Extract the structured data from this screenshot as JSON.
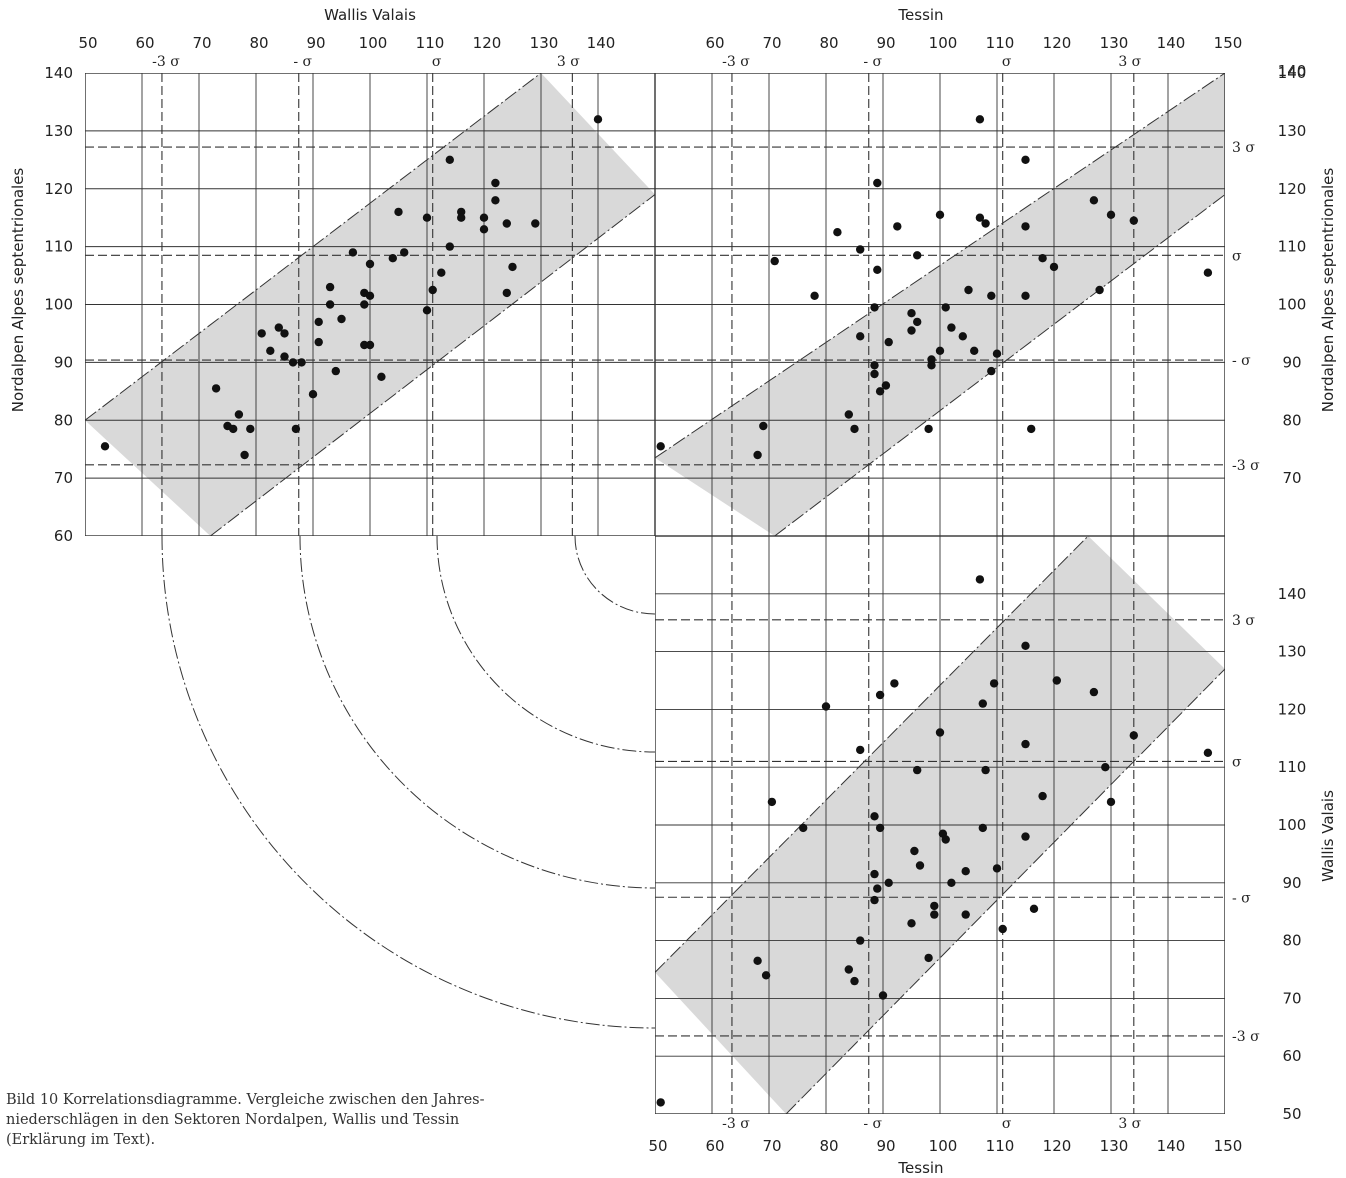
{
  "caption": {
    "lines": [
      "Bild 10   Korrelationsdiagramme. Vergleiche zwischen den Jahres-",
      "niederschlägen in den Sektoren Nordalpen, Wallis und Tessin",
      "(Erklärung im Text)."
    ]
  },
  "chart_data": [
    {
      "type": "scatter",
      "id": "wallis-vs-nordalpen",
      "title": "",
      "xlabel": "Wallis   Valais",
      "ylabel": "Nordalpen   Alpes septentrionales",
      "xlim": [
        50,
        150
      ],
      "ylim": [
        60,
        140
      ],
      "xticks": [
        50,
        60,
        70,
        80,
        90,
        100,
        110,
        120,
        130,
        140
      ],
      "yticks": [
        60,
        70,
        80,
        90,
        100,
        110,
        120,
        130,
        140
      ],
      "sigma_x": {
        "labels": [
          "-3 σ",
          "- σ",
          "σ",
          "3 σ"
        ],
        "values": [
          63.5,
          87.5,
          111,
          135.5
        ]
      },
      "sigma_y": {
        "labels": [
          "-3 σ",
          "- σ",
          "σ",
          "3 σ"
        ],
        "values": [
          72.3,
          90.4,
          108.5,
          127.2
        ]
      },
      "band": {
        "lower": [
          [
            72,
            60
          ],
          [
            150,
            119
          ]
        ],
        "upper": [
          [
            50,
            80
          ],
          [
            130,
            140
          ]
        ]
      },
      "points": [
        [
          53.5,
          75.5
        ],
        [
          73,
          85.5
        ],
        [
          75,
          79
        ],
        [
          76,
          78.5
        ],
        [
          77,
          81
        ],
        [
          78,
          74
        ],
        [
          79,
          78.5
        ],
        [
          81,
          95
        ],
        [
          82.5,
          92
        ],
        [
          84,
          96
        ],
        [
          85,
          91
        ],
        [
          85,
          95
        ],
        [
          86.5,
          90
        ],
        [
          87,
          78.5
        ],
        [
          88,
          90
        ],
        [
          90,
          84.5
        ],
        [
          91,
          93.5
        ],
        [
          91,
          97
        ],
        [
          93,
          100
        ],
        [
          93,
          103
        ],
        [
          94,
          88.5
        ],
        [
          95,
          97.5
        ],
        [
          97,
          109
        ],
        [
          99,
          93
        ],
        [
          99,
          100
        ],
        [
          99,
          102
        ],
        [
          100,
          101.5
        ],
        [
          100,
          93
        ],
        [
          100,
          107
        ],
        [
          102,
          87.5
        ],
        [
          104,
          108
        ],
        [
          105,
          116
        ],
        [
          106,
          109
        ],
        [
          110,
          115
        ],
        [
          110,
          99
        ],
        [
          111,
          102.5
        ],
        [
          112.5,
          105.5
        ],
        [
          114,
          125
        ],
        [
          114,
          110
        ],
        [
          116,
          116
        ],
        [
          116,
          115
        ],
        [
          120,
          115
        ],
        [
          120,
          113
        ],
        [
          122,
          121
        ],
        [
          122,
          118
        ],
        [
          124,
          102
        ],
        [
          124,
          114
        ],
        [
          125,
          106.5
        ],
        [
          129,
          114
        ],
        [
          140,
          132
        ]
      ]
    },
    {
      "type": "scatter",
      "id": "tessin-vs-nordalpen",
      "title": "",
      "xlabel": "Tessin",
      "ylabel": "Nordalpen   Alpes septentrionales",
      "xlim": [
        50,
        150
      ],
      "ylim": [
        60,
        140
      ],
      "xticks": [
        60,
        70,
        80,
        90,
        100,
        110,
        120,
        130,
        140,
        150
      ],
      "yticks": [
        70,
        80,
        90,
        100,
        110,
        120,
        130,
        140
      ],
      "sigma_x": {
        "labels": [
          "-3 σ",
          "- σ",
          "σ",
          "3 σ"
        ],
        "values": [
          63.5,
          87.5,
          111,
          134
        ]
      },
      "sigma_y": {
        "labels": [
          "-3 σ",
          "- σ",
          "σ",
          "3 σ"
        ],
        "values": [
          72.3,
          90.4,
          108.5,
          127.2
        ]
      },
      "band": {
        "lower": [
          [
            71,
            60
          ],
          [
            150,
            119
          ]
        ],
        "upper": [
          [
            50,
            73.5
          ],
          [
            150,
            140
          ]
        ]
      },
      "points": [
        [
          51,
          75.5
        ],
        [
          68,
          74
        ],
        [
          69,
          79
        ],
        [
          71,
          107.5
        ],
        [
          78,
          101.5
        ],
        [
          82,
          112.5
        ],
        [
          84,
          81
        ],
        [
          85,
          78.5
        ],
        [
          86,
          94.5
        ],
        [
          86,
          109.5
        ],
        [
          88.5,
          88
        ],
        [
          88.5,
          89.5
        ],
        [
          88.5,
          99.5
        ],
        [
          89,
          121
        ],
        [
          89,
          106
        ],
        [
          89.5,
          85
        ],
        [
          90.5,
          86
        ],
        [
          91,
          93.5
        ],
        [
          92.5,
          113.5
        ],
        [
          95,
          98.5
        ],
        [
          95,
          95.5
        ],
        [
          96,
          108.5
        ],
        [
          96,
          97
        ],
        [
          98,
          78.5
        ],
        [
          98.5,
          89.5
        ],
        [
          98.5,
          90.5
        ],
        [
          100,
          115.5
        ],
        [
          100,
          92
        ],
        [
          101,
          99.5
        ],
        [
          102,
          96
        ],
        [
          104,
          94.5
        ],
        [
          105,
          102.5
        ],
        [
          106,
          92
        ],
        [
          107,
          132
        ],
        [
          107,
          115
        ],
        [
          108,
          114
        ],
        [
          109,
          101.5
        ],
        [
          109,
          88.5
        ],
        [
          110,
          91.5
        ],
        [
          115,
          125
        ],
        [
          115,
          113.5
        ],
        [
          115,
          101.5
        ],
        [
          116,
          78.5
        ],
        [
          118,
          108
        ],
        [
          120,
          106.5
        ],
        [
          127,
          118
        ],
        [
          128,
          102.5
        ],
        [
          130,
          115.5
        ],
        [
          134,
          114.5
        ],
        [
          147,
          105.5
        ]
      ]
    },
    {
      "type": "scatter",
      "id": "tessin-vs-wallis",
      "title": "",
      "xlabel": "Tessin",
      "ylabel": "Wallis   Valais",
      "xlim": [
        50,
        150
      ],
      "ylim": [
        50,
        150
      ],
      "xticks": [
        50,
        60,
        70,
        80,
        90,
        100,
        110,
        120,
        130,
        140,
        150
      ],
      "yticks": [
        50,
        60,
        70,
        80,
        90,
        100,
        110,
        120,
        130,
        140
      ],
      "sigma_x": {
        "labels": [
          "-3 σ",
          "- σ",
          "σ",
          "3 σ"
        ],
        "values": [
          63.5,
          87.5,
          111,
          134
        ]
      },
      "sigma_y": {
        "labels": [
          "-3 σ",
          "- σ",
          "σ",
          "3 σ"
        ],
        "values": [
          63.5,
          87.5,
          111,
          135.5
        ]
      },
      "band": {
        "lower": [
          [
            73,
            50
          ],
          [
            150,
            127
          ]
        ],
        "upper": [
          [
            50,
            74.5
          ],
          [
            126,
            150
          ]
        ]
      },
      "points": [
        [
          51,
          52
        ],
        [
          68,
          76.5
        ],
        [
          69.5,
          74
        ],
        [
          70.5,
          104
        ],
        [
          76,
          99.5
        ],
        [
          80,
          120.5
        ],
        [
          84,
          75
        ],
        [
          85,
          73
        ],
        [
          86,
          113
        ],
        [
          86,
          80
        ],
        [
          88.5,
          87
        ],
        [
          88.5,
          91.5
        ],
        [
          88.5,
          101.5
        ],
        [
          89,
          89
        ],
        [
          89.5,
          99.5
        ],
        [
          89.5,
          122.5
        ],
        [
          90,
          70.5
        ],
        [
          91,
          90
        ],
        [
          92,
          124.5
        ],
        [
          95,
          83
        ],
        [
          95.5,
          95.5
        ],
        [
          96,
          109.5
        ],
        [
          96.5,
          93
        ],
        [
          98,
          77
        ],
        [
          99,
          84.5
        ],
        [
          99,
          86
        ],
        [
          100,
          116
        ],
        [
          100.5,
          98.5
        ],
        [
          101,
          97.5
        ],
        [
          102,
          90
        ],
        [
          104.5,
          84.5
        ],
        [
          104.5,
          92
        ],
        [
          107,
          142.5
        ],
        [
          107.5,
          121
        ],
        [
          107.5,
          99.5
        ],
        [
          108,
          109.5
        ],
        [
          109.5,
          124.5
        ],
        [
          110,
          92.5
        ],
        [
          111,
          82
        ],
        [
          115,
          131
        ],
        [
          115,
          114
        ],
        [
          115,
          98
        ],
        [
          116.5,
          85.5
        ],
        [
          118,
          105
        ],
        [
          120.5,
          125
        ],
        [
          127,
          123
        ],
        [
          129,
          110
        ],
        [
          130,
          104
        ],
        [
          134,
          115.5
        ],
        [
          147,
          112.5
        ]
      ]
    }
  ],
  "labels": {
    "top_left_header": "Wallis   Valais",
    "top_right_header": "Tessin",
    "bottom_header": "Tessin",
    "left_axis": "Nordalpen   Alpes septentrionales",
    "right_axis_top": "Nordalpen   Alpes septentrionales",
    "right_axis_bottom": "Wallis   Valais"
  },
  "colors": {
    "band": "#d9d9d9",
    "lines": "#333333",
    "points": "#111111"
  }
}
